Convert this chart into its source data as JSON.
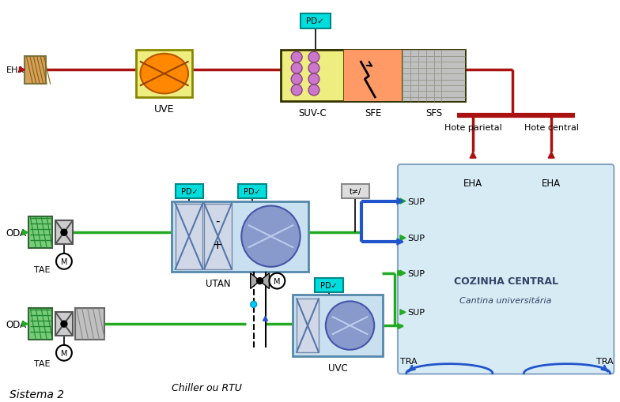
{
  "bg_color": "#ffffff",
  "dark_red": "#aa1111",
  "green": "#22aa22",
  "blue": "#2255cc",
  "cyan_box": "#00cccc",
  "light_blue_room": "#d0e8f4",
  "room_label1": "COZINHA CENTRAL",
  "room_label2": "Cantina universitária",
  "labels": {
    "EHA": "EHA",
    "UVE": "UVE",
    "SUVC": "SUV-C",
    "SFE": "SFE",
    "SFS": "SFS",
    "ODA": "ODA",
    "TAE": "TAE",
    "UTAN": "UTAN",
    "Hote_parietal": "Hote parietal",
    "Hote_central": "Hote central",
    "EHA1": "EHA",
    "EHA2": "EHA",
    "SUP1": "SUP",
    "SUP2": "SUP",
    "SUP3": "SUP",
    "SUP4": "SUP",
    "TRA1": "TRA",
    "TRA2": "TRA",
    "Sistema2": "Sistema 2",
    "Chiller": "Chiller ou RTU",
    "UVC": "UVC"
  }
}
